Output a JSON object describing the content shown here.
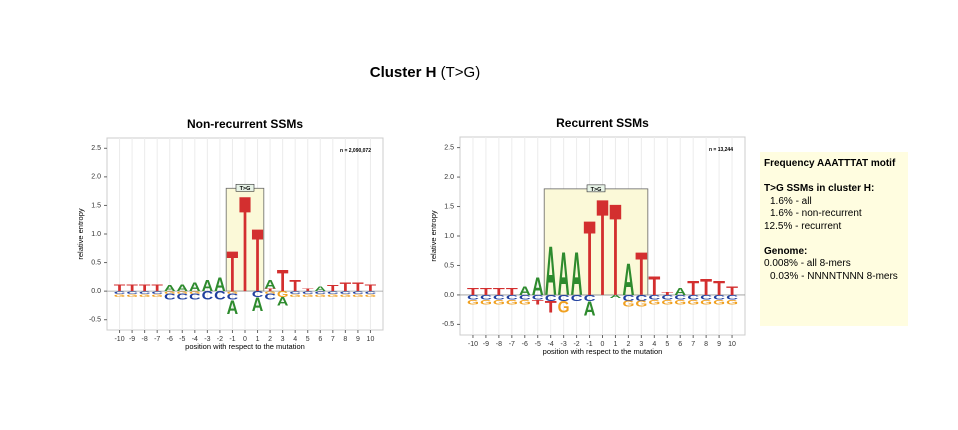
{
  "title": {
    "bold": "Cluster H",
    "rest": "(T>G)"
  },
  "chart_data": [
    {
      "type": "logo",
      "title": "Non-recurrent SSMs",
      "ylabel": "relative entropy",
      "xlabel": "position with respect to the mutation",
      "annotation": "n = 2,090,072",
      "x": [
        -10,
        -9,
        -8,
        -7,
        -6,
        -5,
        -4,
        -3,
        -2,
        -1,
        0,
        1,
        2,
        3,
        4,
        5,
        6,
        7,
        8,
        9,
        10
      ],
      "xlim": [
        -11,
        11
      ],
      "xticks": [
        -10,
        -9,
        -8,
        -7,
        -6,
        -5,
        -4,
        -3,
        -2,
        -1,
        0,
        1,
        2,
        3,
        4,
        5,
        6,
        7,
        8,
        9,
        10
      ],
      "ylim": [
        -0.68,
        2.68
      ],
      "yticks": [
        -0.5,
        {
          "value": 0,
          "label": "0.0"
        },
        0.5,
        {
          "value": 1,
          "label": "1.0"
        },
        1.5,
        {
          "value": 2,
          "label": "2.0"
        },
        2.5
      ],
      "grid": true,
      "highlight": {
        "xlim": [
          -1.5,
          1.5
        ],
        "height": 1.8,
        "label": "T>G"
      },
      "series": [
        {
          "name": "A",
          "color": "#2e8b2e",
          "values": [
            0,
            0,
            0,
            0,
            0.1,
            0.12,
            0.15,
            0.2,
            0.25,
            -0.25,
            0,
            -0.25,
            0.15,
            -0.15,
            0,
            0,
            0.08,
            0,
            0,
            0,
            0
          ]
        },
        {
          "name": "C",
          "color": "#1f3f9f",
          "values": [
            -0.05,
            -0.05,
            -0.05,
            -0.05,
            -0.1,
            -0.1,
            -0.1,
            -0.15,
            -0.15,
            -0.1,
            0,
            -0.1,
            -0.1,
            0,
            -0.05,
            -0.05,
            -0.05,
            -0.05,
            -0.05,
            -0.05,
            -0.05
          ]
        },
        {
          "name": "G",
          "color": "#f0a020",
          "values": [
            -0.05,
            -0.05,
            -0.05,
            -0.05,
            -0.05,
            -0.05,
            -0.05,
            0,
            0,
            -0.05,
            0,
            0,
            -0.05,
            -0.1,
            -0.05,
            -0.05,
            -0.05,
            -0.05,
            -0.05,
            -0.05,
            -0.05
          ]
        },
        {
          "name": "T",
          "color": "#d32f2f",
          "values": [
            0.12,
            0.12,
            0.12,
            0.12,
            0,
            0,
            0,
            0,
            0,
            0.72,
            1.72,
            1.12,
            0.05,
            0.38,
            0.2,
            0.05,
            0,
            0.1,
            0.15,
            0.15,
            0.12
          ]
        }
      ]
    },
    {
      "type": "logo",
      "title": "Recurrent SSMs",
      "ylabel": "relative entropy",
      "xlabel": "position with respect to the mutation",
      "annotation": "n = 13,244",
      "x": [
        -10,
        -9,
        -8,
        -7,
        -6,
        -5,
        -4,
        -3,
        -2,
        -1,
        0,
        1,
        2,
        3,
        4,
        5,
        6,
        7,
        8,
        9,
        10
      ],
      "xlim": [
        -11,
        11
      ],
      "xticks": [
        -10,
        -9,
        -8,
        -7,
        -6,
        -5,
        -4,
        -3,
        -2,
        -1,
        0,
        1,
        2,
        3,
        4,
        5,
        6,
        7,
        8,
        9,
        10
      ],
      "ylim": [
        -0.68,
        2.68
      ],
      "yticks": [
        -0.5,
        {
          "value": 0,
          "label": "0.0"
        },
        0.5,
        {
          "value": 1,
          "label": "1.0"
        },
        1.5,
        {
          "value": 2,
          "label": "2.0"
        },
        2.5
      ],
      "grid": true,
      "highlight": {
        "xlim": [
          -4.5,
          3.5
        ],
        "height": 1.8,
        "label": "T>G"
      },
      "series": [
        {
          "name": "A",
          "color": "#2e8b2e",
          "values": [
            0,
            0,
            0,
            0,
            0.15,
            0.3,
            0.85,
            0.75,
            0.75,
            -0.25,
            0,
            -0.05,
            0.55,
            0,
            0,
            0,
            0.12,
            0,
            0,
            0,
            0
          ]
        },
        {
          "name": "C",
          "color": "#1f3f9f",
          "values": [
            -0.08,
            -0.08,
            -0.08,
            -0.08,
            -0.08,
            -0.08,
            -0.1,
            -0.1,
            -0.1,
            -0.1,
            0,
            0,
            -0.1,
            -0.1,
            -0.08,
            -0.08,
            -0.08,
            -0.08,
            -0.08,
            -0.08,
            -0.08
          ]
        },
        {
          "name": "G",
          "color": "#f0a020",
          "values": [
            -0.08,
            -0.08,
            -0.08,
            -0.08,
            -0.08,
            0,
            0,
            -0.2,
            0,
            0,
            0,
            0,
            -0.1,
            -0.1,
            -0.08,
            -0.08,
            -0.08,
            -0.08,
            -0.08,
            -0.08,
            -0.08
          ]
        },
        {
          "name": "T",
          "color": "#d32f2f",
          "values": [
            0.12,
            0.12,
            0.12,
            0.12,
            0,
            -0.08,
            -0.2,
            0,
            0,
            1.3,
            1.68,
            1.6,
            0,
            0.75,
            0.33,
            0.05,
            0,
            0.25,
            0.28,
            0.25,
            0.15
          ]
        }
      ]
    }
  ],
  "info_box": {
    "title": "Frequency AAATTTAT motif",
    "lines": [
      "T>G SSMs in cluster H:",
      "1.6% - all",
      "1.6% - non-recurrent",
      "12.5% - recurrent",
      "",
      "Genome:",
      "0.008% - all 8-mers",
      "0.03% - NNNNTNNN 8-mers"
    ]
  }
}
